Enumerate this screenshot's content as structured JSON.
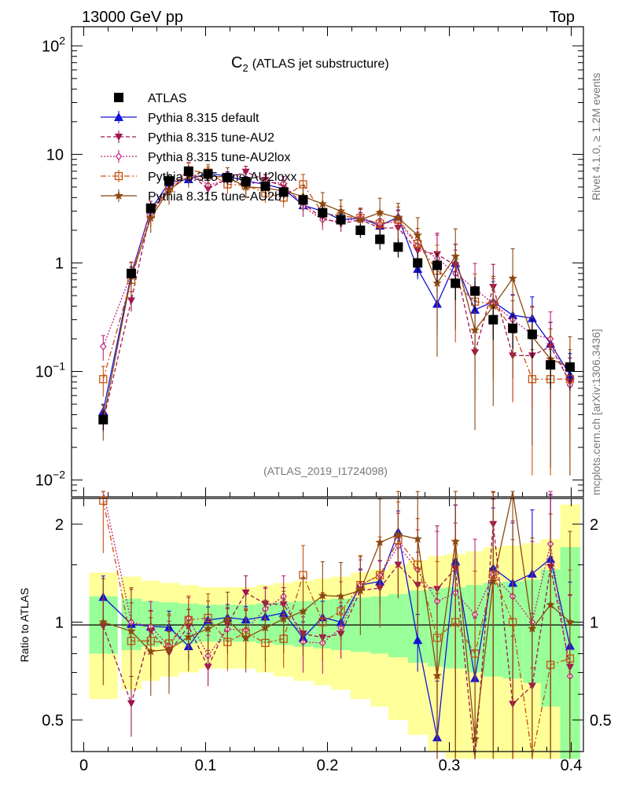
{
  "header": {
    "left": "13000 GeV pp",
    "right": "Top"
  },
  "side_labels": {
    "right_top": "Rivet 4.1.0, ≥ 1.2M events",
    "right_bottom": "mcplots.cern.ch [arXiv:1306.3436]"
  },
  "chart_data": {
    "type": "line",
    "title": "C2 (ATLAS jet substructure)",
    "title_main": "C",
    "title_sub": "2",
    "title_rest": "(ATLAS jet substructure)",
    "analysis_tag": "(ATLAS_2019_I1724098)",
    "xlabel": "",
    "ylabel": "",
    "ratio_ylabel": "Ratio to ATLAS",
    "xlim": [
      -0.01,
      0.41
    ],
    "ylim": [
      0.007,
      150
    ],
    "ratio_ylim": [
      0.4,
      2.4
    ],
    "yscale": "log",
    "x_ticks": [
      "0",
      "0.1",
      "0.2",
      "0.3",
      "0.4"
    ],
    "x_tick_values": [
      0,
      0.1,
      0.2,
      0.3,
      0.4
    ],
    "y_ticks": [
      {
        "v": 0.01,
        "base": "10",
        "exp": "−2"
      },
      {
        "v": 0.1,
        "base": "10",
        "exp": "−1"
      },
      {
        "v": 1,
        "base": "1",
        "exp": ""
      },
      {
        "v": 10,
        "base": "10",
        "exp": ""
      },
      {
        "v": 100,
        "base": "10",
        "exp": "2"
      }
    ],
    "ratio_ticks": [
      "0.5",
      "1",
      "2"
    ],
    "ratio_tick_values": [
      0.5,
      1,
      2
    ],
    "x": [
      0.016,
      0.039,
      0.055,
      0.07,
      0.086,
      0.102,
      0.118,
      0.133,
      0.149,
      0.164,
      0.18,
      0.196,
      0.211,
      0.227,
      0.243,
      0.258,
      0.274,
      0.29,
      0.305,
      0.321,
      0.336,
      0.352,
      0.368,
      0.383,
      0.399
    ],
    "data": {
      "name": "ATLAS",
      "values": [
        0.036,
        0.8,
        3.2,
        5.7,
        7.0,
        6.6,
        6.1,
        5.6,
        5.1,
        4.5,
        3.8,
        2.9,
        2.5,
        2.0,
        1.65,
        1.4,
        1.0,
        0.95,
        0.65,
        0.55,
        0.3,
        0.25,
        0.22,
        0.115,
        0.11
      ],
      "rel_err": [
        0.2,
        0.2,
        0.15,
        0.15,
        0.12,
        0.12,
        0.12,
        0.12,
        0.12,
        0.12,
        0.15,
        0.15,
        0.15,
        0.15,
        0.2,
        0.2,
        0.25,
        0.3,
        0.3,
        0.35,
        0.35,
        0.35,
        0.4,
        0.4,
        0.4
      ],
      "band_inner": [
        0.2,
        0.18,
        0.16,
        0.15,
        0.14,
        0.13,
        0.13,
        0.13,
        0.14,
        0.15,
        0.16,
        0.17,
        0.18,
        0.19,
        0.2,
        0.22,
        0.25,
        0.27,
        0.28,
        0.3,
        0.32,
        0.33,
        0.35,
        0.45,
        0.7
      ],
      "band_outer": [
        0.42,
        0.38,
        0.34,
        0.32,
        0.3,
        0.28,
        0.28,
        0.28,
        0.3,
        0.32,
        0.34,
        0.36,
        0.38,
        0.42,
        0.45,
        0.5,
        0.55,
        0.6,
        0.62,
        0.65,
        0.7,
        0.72,
        0.75,
        0.8,
        1.3
      ]
    },
    "series": [
      {
        "name": "Pythia 8.315 default",
        "color": "#1414d6",
        "marker": "triangle",
        "dash": "",
        "values": [
          0.043,
          0.79,
          3.1,
          5.5,
          5.9,
          6.7,
          6.3,
          5.7,
          5.3,
          4.8,
          3.4,
          3.0,
          2.5,
          2.6,
          2.2,
          2.65,
          0.88,
          0.42,
          1.0,
          0.37,
          0.44,
          0.33,
          0.31,
          0.18,
          0.093
        ]
      },
      {
        "name": "Pythia 8.315 tune-AU2",
        "color": "#a01450",
        "marker": "tridown",
        "dash": "5,3",
        "values": [
          0.035,
          0.45,
          3.0,
          4.6,
          6.8,
          4.8,
          6.0,
          6.9,
          5.8,
          5.1,
          3.5,
          2.6,
          2.3,
          2.5,
          2.1,
          2.1,
          1.3,
          1.2,
          0.95,
          0.15,
          0.6,
          0.14,
          0.14,
          0.17,
          0.08
        ]
      },
      {
        "name": "Pythia 8.315 tune-AU2lox",
        "color": "#c0207a",
        "marker": "diamond",
        "dash": "2,2",
        "values": [
          0.17,
          0.8,
          3.1,
          4.8,
          7.2,
          5.2,
          5.8,
          5.3,
          5.6,
          5.4,
          3.3,
          2.5,
          2.4,
          2.6,
          2.3,
          2.4,
          1.45,
          1.1,
          0.8,
          0.58,
          0.42,
          0.3,
          0.22,
          0.2,
          0.075
        ]
      },
      {
        "name": "Pythia 8.315 tune-AU2loxx",
        "color": "#c85010",
        "marker": "square-open",
        "dash": "7,3,2,3",
        "values": [
          0.085,
          0.7,
          2.8,
          4.9,
          7.1,
          6.8,
          5.3,
          5.2,
          4.4,
          4.0,
          5.3,
          2.9,
          2.7,
          2.6,
          2.3,
          2.5,
          1.5,
          0.85,
          0.65,
          0.44,
          0.42,
          0.25,
          0.085,
          0.085,
          0.085
        ]
      },
      {
        "name": "Pythia 8.315 tune-AU2b",
        "color": "#8c4810",
        "marker": "star",
        "dash": "",
        "values": [
          0.036,
          0.75,
          2.6,
          4.7,
          6.3,
          6.3,
          6.2,
          5.0,
          4.9,
          4.6,
          4.1,
          3.5,
          3.0,
          2.5,
          2.9,
          2.6,
          1.8,
          0.65,
          1.15,
          0.24,
          0.4,
          0.72,
          0.21,
          0.13,
          0.11
        ]
      }
    ]
  }
}
